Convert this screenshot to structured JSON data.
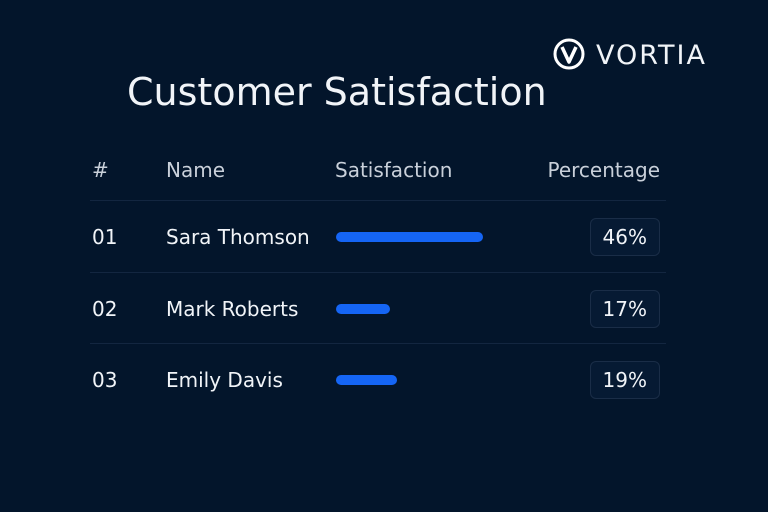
{
  "header": {
    "logo": "VORTIA",
    "title": "Customer Satisfaction"
  },
  "table": {
    "columns": [
      "#",
      "Name",
      "Satisfaction",
      "Percentage"
    ],
    "rows": [
      {
        "index": "01",
        "name": "Sara Thomson",
        "percentage": {
          "value": 46,
          "label": "46%"
        }
      },
      {
        "index": "02",
        "name": "Mark Roberts",
        "percentage": {
          "value": 17,
          "label": "17%"
        }
      },
      {
        "index": "03",
        "name": "Emily Davis",
        "percentage": {
          "value": 19,
          "label": "19%"
        }
      }
    ]
  }
}
